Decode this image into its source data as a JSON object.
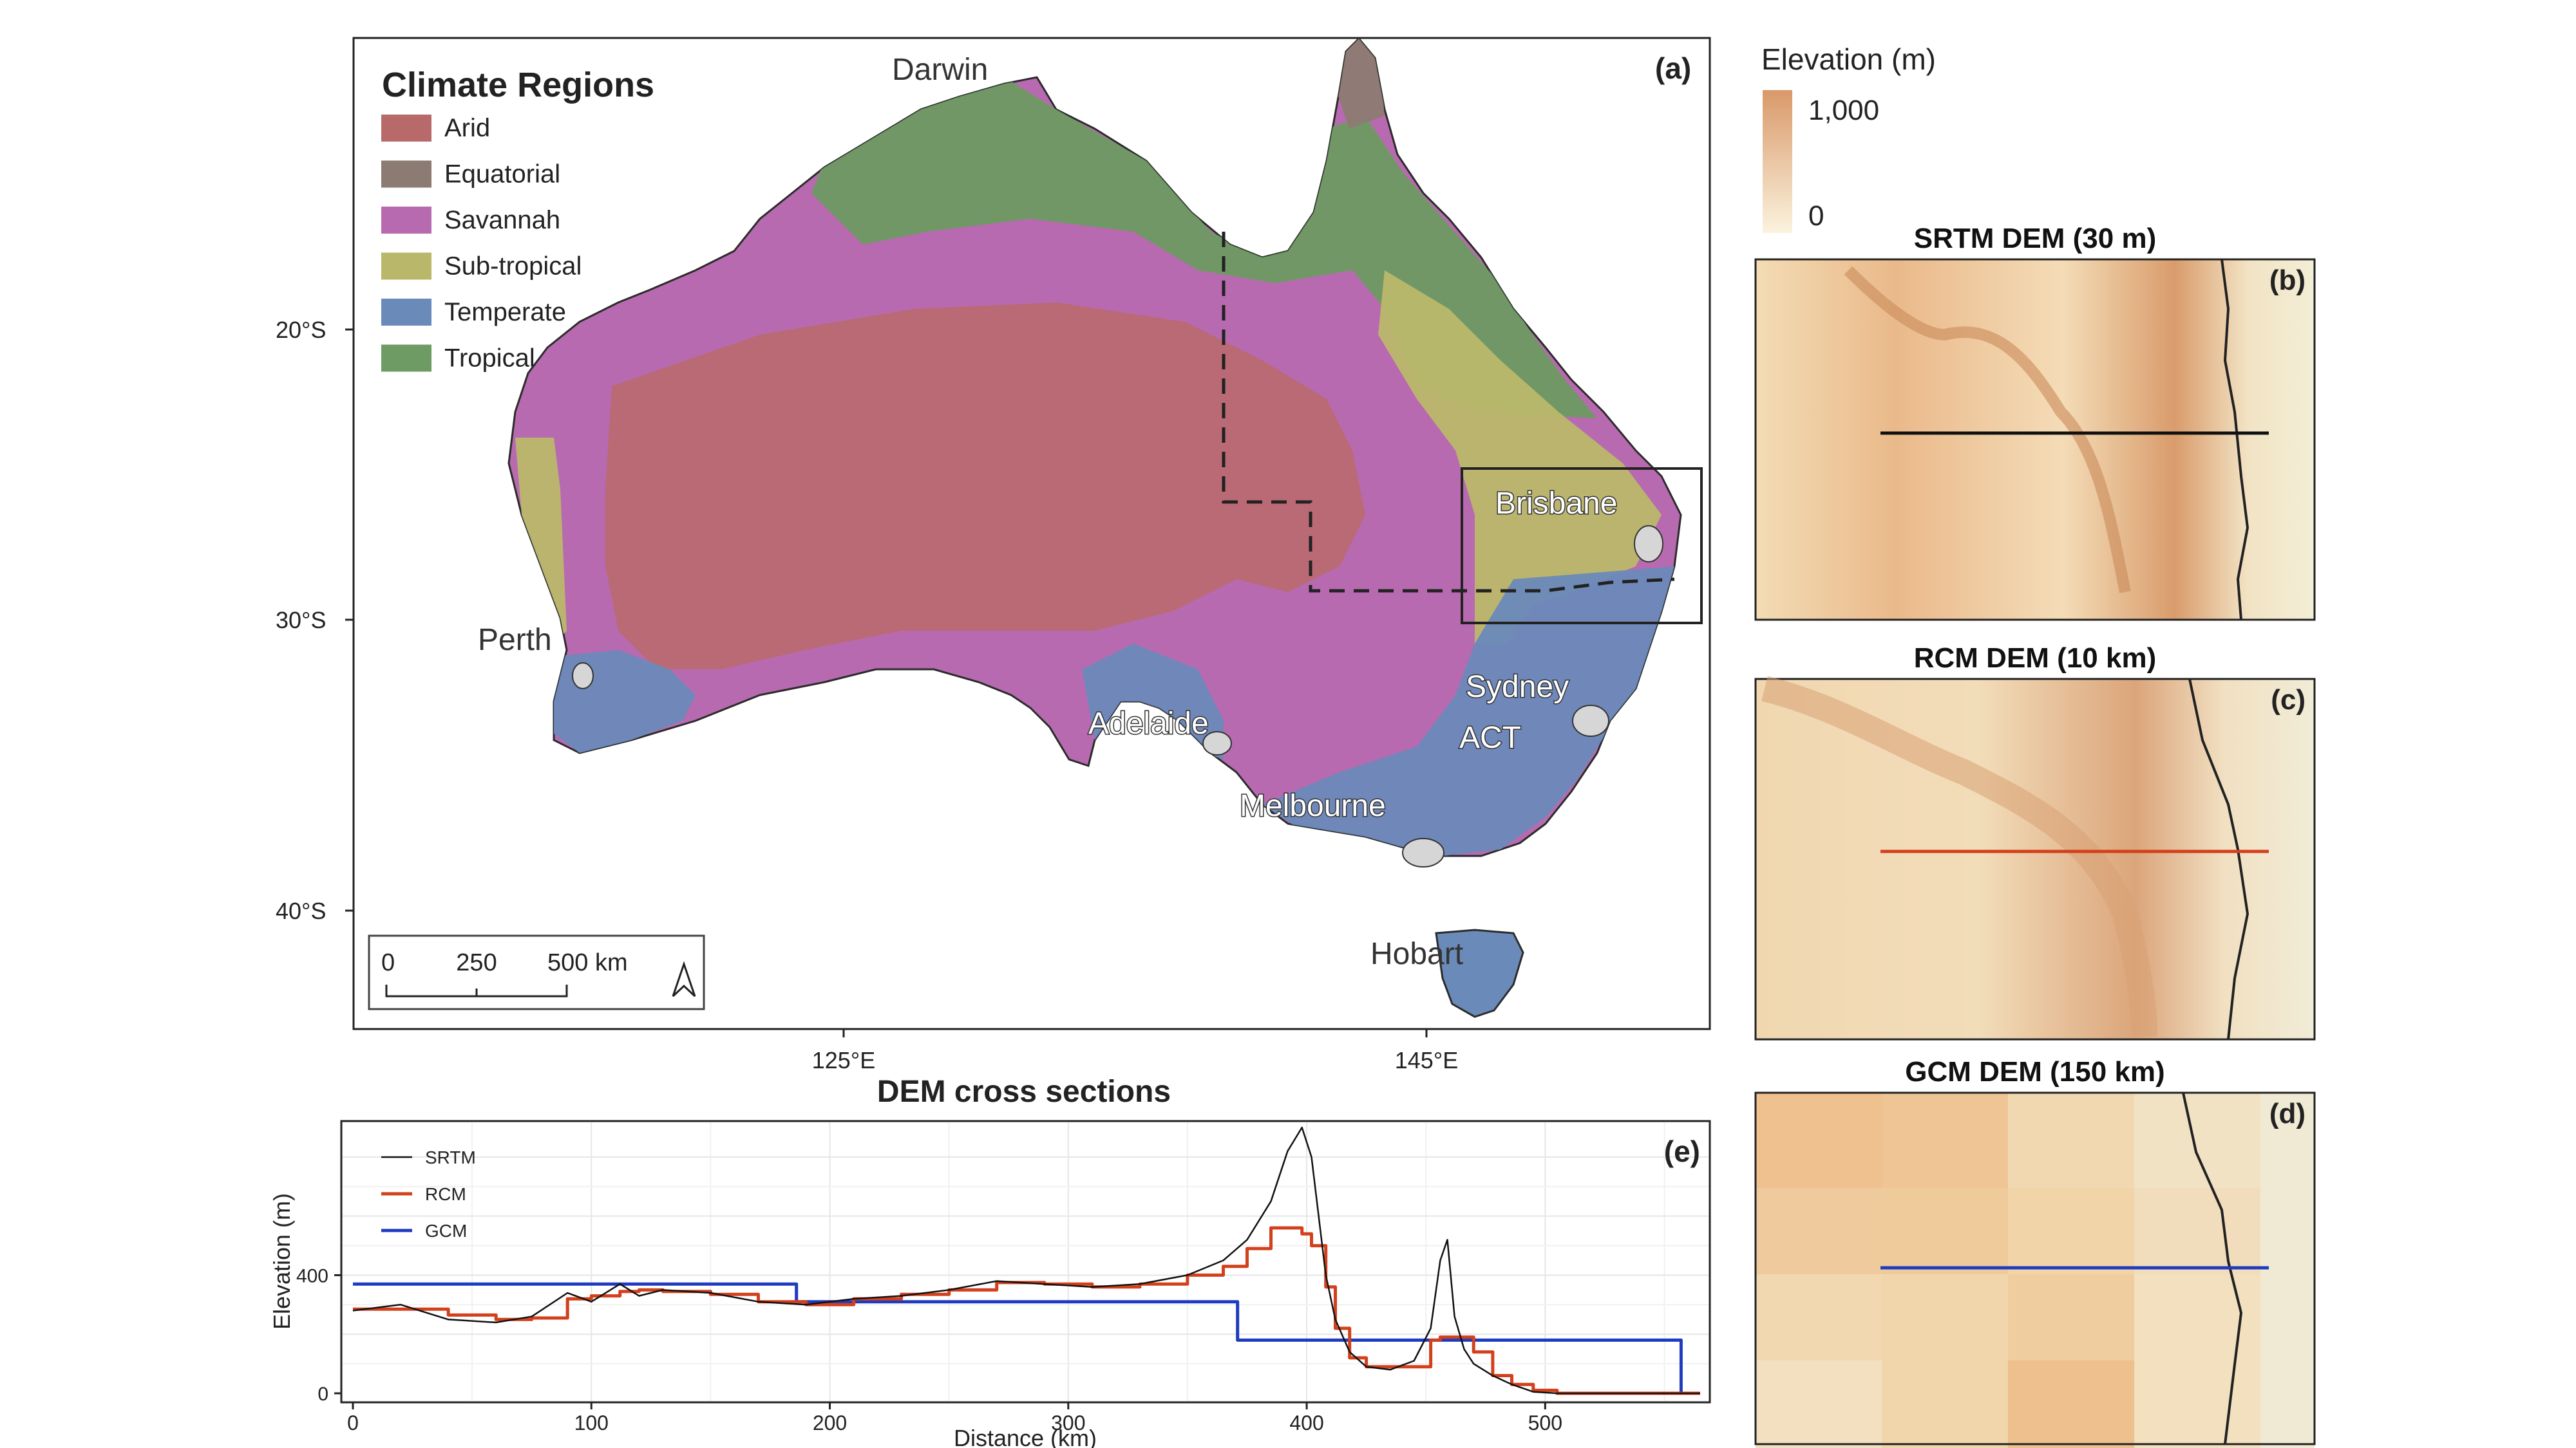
{
  "map_a": {
    "panel_label": "(a)",
    "legend_title": "Climate Regions",
    "regions": [
      {
        "name": "Arid",
        "color": "#b86a6a"
      },
      {
        "name": "Equatorial",
        "color": "#8c7b72"
      },
      {
        "name": "Savannah",
        "color": "#b86ab0"
      },
      {
        "name": "Sub-tropical",
        "color": "#b9b86a"
      },
      {
        "name": "Temperate",
        "color": "#6a8ab9"
      },
      {
        "name": "Tropical",
        "color": "#6e9a63"
      }
    ],
    "cities": [
      "Darwin",
      "Brisbane",
      "Perth",
      "Sydney",
      "ACT",
      "Adelaide",
      "Melbourne",
      "Hobart"
    ],
    "lat_ticks": [
      "20°S",
      "30°S",
      "40°S"
    ],
    "lon_ticks": [
      "125°E",
      "145°E"
    ],
    "scalebar": {
      "labels": [
        "0",
        "250",
        "500 km"
      ]
    }
  },
  "elevation_legend": {
    "title": "Elevation (m)",
    "max_label": "1,000",
    "min_label": "0",
    "color_high": "#d9996a",
    "color_low": "#fbf3de"
  },
  "panels": [
    {
      "id": "b",
      "label": "(b)",
      "title": "SRTM DEM (30 m)",
      "line_color": "#111111"
    },
    {
      "id": "c",
      "label": "(c)",
      "title": "RCM DEM (10 km)",
      "line_color": "#d2401c"
    },
    {
      "id": "d",
      "label": "(d)",
      "title": "GCM DEM (150 km)",
      "line_color": "#1f3bbf"
    }
  ],
  "chart_data": {
    "type": "line",
    "panel_label": "(e)",
    "title": "DEM cross sections",
    "xlabel": "Distance (km)",
    "ylabel": "Elevation (m)",
    "x_ticks": [
      0,
      100,
      200,
      300,
      400,
      500
    ],
    "y_ticks": [
      0,
      400
    ],
    "xlim": [
      0,
      565
    ],
    "ylim": [
      0,
      900
    ],
    "grid": true,
    "legend_position": "top-left",
    "series": [
      {
        "name": "SRTM",
        "color": "#111111",
        "x": [
          0,
          20,
          40,
          60,
          75,
          90,
          100,
          112,
          120,
          130,
          150,
          170,
          190,
          210,
          230,
          250,
          270,
          290,
          310,
          330,
          350,
          365,
          375,
          385,
          392,
          398,
          402,
          408,
          412,
          418,
          425,
          435,
          445,
          452,
          456,
          459,
          462,
          466,
          470,
          478,
          486,
          495,
          505,
          515,
          530,
          565
        ],
        "y": [
          280,
          300,
          250,
          240,
          260,
          340,
          310,
          370,
          330,
          350,
          340,
          310,
          300,
          320,
          330,
          350,
          380,
          370,
          360,
          370,
          400,
          450,
          520,
          650,
          820,
          900,
          800,
          400,
          250,
          140,
          90,
          80,
          110,
          220,
          450,
          520,
          260,
          150,
          100,
          60,
          30,
          5,
          0,
          0,
          0,
          0
        ]
      },
      {
        "name": "RCM",
        "color": "#d2401c",
        "x": [
          0,
          20,
          40,
          60,
          75,
          90,
          100,
          112,
          120,
          130,
          150,
          170,
          190,
          210,
          230,
          250,
          270,
          290,
          310,
          330,
          350,
          365,
          375,
          385,
          392,
          398,
          402,
          408,
          412,
          418,
          425,
          435,
          445,
          452,
          456,
          459,
          462,
          466,
          470,
          478,
          486,
          495,
          505,
          515,
          530,
          565
        ],
        "y": [
          285,
          285,
          265,
          250,
          255,
          320,
          330,
          345,
          350,
          345,
          335,
          310,
          300,
          320,
          335,
          350,
          375,
          370,
          360,
          370,
          400,
          430,
          490,
          560,
          560,
          540,
          500,
          360,
          220,
          120,
          90,
          90,
          90,
          180,
          190,
          190,
          190,
          190,
          140,
          60,
          30,
          10,
          0,
          0,
          0,
          0
        ]
      },
      {
        "name": "GCM",
        "color": "#1f3bbf",
        "x": [
          0,
          186,
          186,
          371,
          371,
          557,
          557
        ],
        "y": [
          370,
          370,
          310,
          310,
          180,
          180,
          0
        ]
      }
    ]
  }
}
